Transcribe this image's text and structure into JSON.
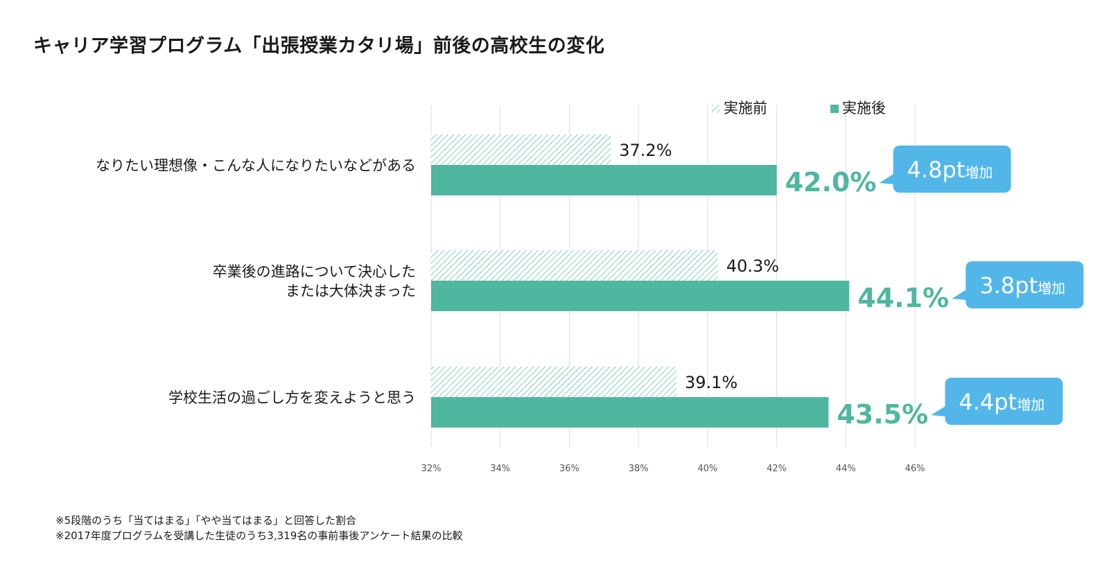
{
  "title": "キャリア学習プログラム「出張授業カタリ場」前後の高校生の変化",
  "colors": {
    "before": "#4fb79f",
    "after": "#4fb79f",
    "highlight_text": "#4fb79f",
    "callout": "#52b7e8",
    "gridline": "#dcdcdc"
  },
  "chart_data": {
    "type": "bar",
    "orientation": "horizontal",
    "categories": [
      [
        "なりたい理想像・こんな人になりたいなどがある"
      ],
      [
        "卒業後の進路について決心した",
        "または大体決まった"
      ],
      [
        "学校生活の過ごし方を変えようと思う"
      ]
    ],
    "series": [
      {
        "name": "実施前",
        "values": [
          37.2,
          40.3,
          39.1
        ],
        "labels": [
          "37.2%",
          "40.3%",
          "39.1%"
        ],
        "pattern": "hatched"
      },
      {
        "name": "実施後",
        "values": [
          42.0,
          44.1,
          43.5
        ],
        "labels": [
          "42.0%",
          "44.1%",
          "43.5%"
        ],
        "pattern": "solid"
      }
    ],
    "annotations": [
      {
        "num": "4.8pt",
        "text": "増加"
      },
      {
        "num": "3.8pt",
        "text": "増加"
      },
      {
        "num": "4.4pt",
        "text": "増加"
      }
    ],
    "xlim": [
      32,
      46
    ],
    "xticks": [
      "32%",
      "34%",
      "36%",
      "38%",
      "40%",
      "42%",
      "44%",
      "46%"
    ],
    "xtick_values": [
      32,
      34,
      36,
      38,
      40,
      42,
      44,
      46
    ],
    "grid": true,
    "legend_position": "top-right"
  },
  "notes": [
    "※5段階のうち「当てはまる」「やや当てはまる」と回答した割合",
    "※2017年度プログラムを受講した生徒のうち3,319名の事前事後アンケート結果の比較"
  ]
}
